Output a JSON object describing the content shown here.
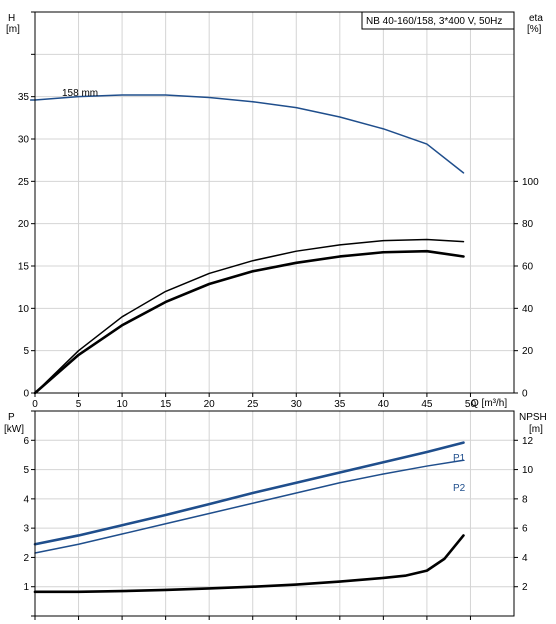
{
  "title_box": "NB 40-160/158, 3*400 V, 50Hz",
  "colors": {
    "blue": "#1f4e8c",
    "black": "#000000",
    "grid": "#d4d4d4"
  },
  "chart_data": [
    {
      "type": "line",
      "panel": "top",
      "x_axis": {
        "label": "Q [m³/h]",
        "range": [
          0,
          55
        ],
        "ticks": [
          0,
          5,
          10,
          15,
          20,
          25,
          30,
          35,
          40,
          45,
          50
        ]
      },
      "y_left": {
        "label_line1": "H",
        "label_line2": "[m]",
        "range": [
          0,
          45
        ],
        "ticks": [
          0,
          5,
          10,
          15,
          20,
          25,
          30,
          35
        ]
      },
      "y_right": {
        "label_line1": "eta",
        "label_line2": "[%]",
        "range": [
          0,
          180
        ],
        "ticks": [
          0,
          20,
          40,
          60,
          80,
          100
        ]
      },
      "grid": true,
      "annotations": [
        {
          "text": "158 mm"
        }
      ],
      "series": [
        {
          "axis": "left",
          "color": "#1f4e8c",
          "x": [
            -0.5,
            0,
            5,
            10,
            15,
            20,
            25,
            30,
            35,
            40,
            45,
            49.2
          ],
          "y": [
            34.6,
            34.6,
            35.0,
            35.2,
            35.2,
            34.9,
            34.4,
            33.7,
            32.6,
            31.2,
            29.4,
            26.0
          ]
        },
        {
          "axis": "right",
          "color": "#000000",
          "x": [
            0,
            5,
            10,
            15,
            20,
            25,
            30,
            35,
            40,
            45,
            49.2
          ],
          "y": [
            0,
            20,
            36,
            48,
            56.5,
            62.5,
            67,
            70,
            72,
            72.5,
            71.5
          ]
        },
        {
          "axis": "right",
          "color": "#000000",
          "bold": true,
          "x": [
            0,
            5,
            10,
            15,
            20,
            25,
            30,
            35,
            40,
            45,
            49.2
          ],
          "y": [
            0,
            18,
            32,
            43,
            51.5,
            57.5,
            61.5,
            64.5,
            66.5,
            67,
            64.5
          ]
        }
      ]
    },
    {
      "type": "line",
      "panel": "bottom",
      "x_axis": {
        "range": [
          0,
          55
        ],
        "ticks": [
          0,
          5,
          10,
          15,
          20,
          25,
          30,
          35,
          40,
          45,
          50
        ]
      },
      "y_left": {
        "label_line1": "P",
        "label_line2": "[kW]",
        "range": [
          0,
          7
        ],
        "ticks": [
          1,
          2,
          3,
          4,
          5,
          6
        ]
      },
      "y_right": {
        "label_line1": "NPSH",
        "label_line2": "[m]",
        "range": [
          0,
          14
        ],
        "ticks": [
          2,
          4,
          6,
          8,
          10,
          12
        ]
      },
      "grid": true,
      "series": [
        {
          "name": "P1",
          "axis": "left",
          "color": "#1f4e8c",
          "bold": true,
          "x": [
            0,
            5,
            10,
            15,
            20,
            25,
            30,
            35,
            40,
            45,
            49.2
          ],
          "y": [
            2.45,
            2.75,
            3.1,
            3.45,
            3.82,
            4.2,
            4.55,
            4.9,
            5.25,
            5.6,
            5.92
          ]
        },
        {
          "name": "P2",
          "axis": "left",
          "color": "#1f4e8c",
          "x": [
            0,
            5,
            10,
            15,
            20,
            25,
            30,
            35,
            40,
            45,
            49.2
          ],
          "y": [
            2.15,
            2.45,
            2.8,
            3.15,
            3.5,
            3.85,
            4.2,
            4.55,
            4.85,
            5.12,
            5.32
          ]
        },
        {
          "axis": "right",
          "color": "#000000",
          "bold": true,
          "x": [
            0,
            5,
            10,
            15,
            20,
            25,
            30,
            35,
            40,
            42.5,
            45,
            47,
            49.2
          ],
          "y": [
            1.65,
            1.65,
            1.7,
            1.78,
            1.88,
            2.0,
            2.15,
            2.35,
            2.6,
            2.75,
            3.1,
            3.9,
            5.5
          ]
        }
      ]
    }
  ]
}
